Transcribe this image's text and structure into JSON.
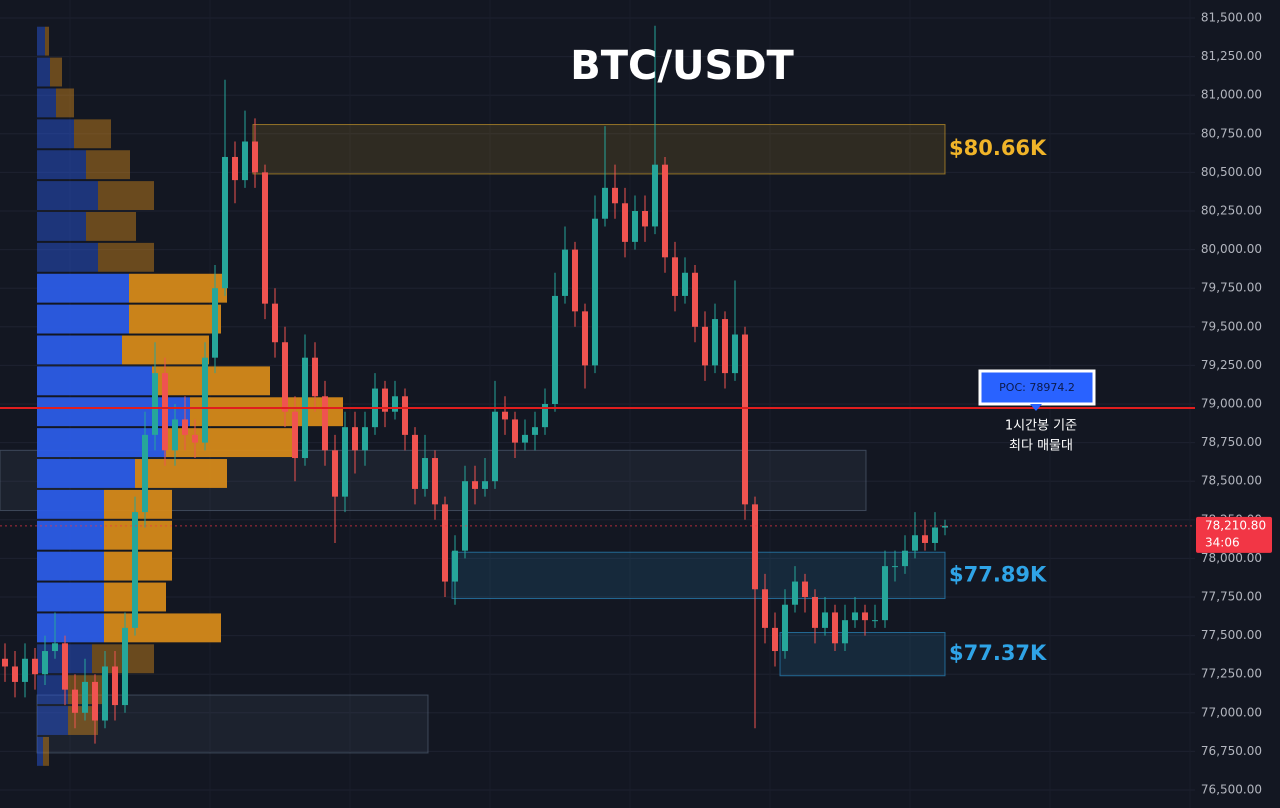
{
  "chart_data": {
    "type": "candlestick",
    "title": "BTC/USDT",
    "up_color": "#26a69a",
    "down_color": "#ef5350",
    "ylim": [
      76500,
      81500
    ],
    "yticks": [
      {
        "value": 76500,
        "label": "76,500.00"
      },
      {
        "value": 76750,
        "label": "76,750.00"
      },
      {
        "value": 77000,
        "label": "77,000.00"
      },
      {
        "value": 77250,
        "label": "77,250.00"
      },
      {
        "value": 77500,
        "label": "77,500.00"
      },
      {
        "value": 77750,
        "label": "77,750.00"
      },
      {
        "value": 78000,
        "label": "78,000.00"
      },
      {
        "value": 78250,
        "label": "78,250.00"
      },
      {
        "value": 78500,
        "label": "78,500.00"
      },
      {
        "value": 78750,
        "label": "78,750.00"
      },
      {
        "value": 79000,
        "label": "79,000.00"
      },
      {
        "value": 79250,
        "label": "79,250.00"
      },
      {
        "value": 79500,
        "label": "79,500.00"
      },
      {
        "value": 79750,
        "label": "79,750.00"
      },
      {
        "value": 80000,
        "label": "80,000.00"
      },
      {
        "value": 80250,
        "label": "80,250.00"
      },
      {
        "value": 80500,
        "label": "80,500.00"
      },
      {
        "value": 80750,
        "label": "80,750.00"
      },
      {
        "value": 81000,
        "label": "81,000.00"
      },
      {
        "value": 81250,
        "label": "81,250.00"
      },
      {
        "value": 81500,
        "label": "81,500.00"
      }
    ],
    "grid": true,
    "candles": {
      "open": [
        77350,
        77300,
        77200,
        77350,
        77250,
        77400,
        77450,
        77150,
        77000,
        77200,
        76950,
        77300,
        77050,
        77550,
        78300,
        78800,
        79200,
        78700,
        78900,
        78800,
        78750,
        79300,
        79750,
        80600,
        80450,
        80700,
        80500,
        79650,
        79400,
        78950,
        78650,
        79300,
        79050,
        78700,
        78400,
        78850,
        78700,
        78850,
        79100,
        78950,
        79050,
        78800,
        78450,
        78650,
        78350,
        77850,
        78050,
        78500,
        78450,
        78500,
        78950,
        78900,
        78750,
        78800,
        78850,
        79000,
        79700,
        80000,
        79600,
        79250,
        80200,
        80400,
        80300,
        80050,
        80250,
        80150,
        80550,
        79950,
        79700,
        79850,
        79500,
        79250,
        79550,
        79200,
        79450,
        78350,
        77800,
        77550,
        77400,
        77700,
        77850,
        77750,
        77550,
        77650,
        77450,
        77600,
        77650,
        77600,
        77600,
        77950,
        77950,
        78050,
        78150,
        78100,
        78200
      ],
      "high": [
        77450,
        77400,
        77450,
        77420,
        77500,
        77650,
        77500,
        77250,
        77350,
        77250,
        77400,
        77400,
        77650,
        78400,
        78950,
        79400,
        79300,
        79000,
        79050,
        78900,
        79400,
        79900,
        81100,
        80700,
        80900,
        80850,
        80550,
        79750,
        79500,
        79050,
        79450,
        79400,
        79150,
        78800,
        78950,
        78950,
        78950,
        79200,
        79150,
        79150,
        79100,
        78850,
        78800,
        78700,
        78400,
        78150,
        78600,
        78600,
        78650,
        79150,
        79050,
        78950,
        78900,
        78950,
        79100,
        79850,
        80150,
        80050,
        79650,
        80350,
        80800,
        80550,
        80400,
        80350,
        80350,
        81450,
        80600,
        80050,
        79950,
        79900,
        79600,
        79650,
        79600,
        79800,
        79500,
        78400,
        77900,
        77650,
        77800,
        77950,
        77900,
        77800,
        77750,
        77700,
        77700,
        77750,
        77700,
        77700,
        78050,
        78050,
        78150,
        78300,
        78250,
        78300,
        78250
      ],
      "low": [
        77200,
        77100,
        77100,
        77150,
        77180,
        77350,
        77050,
        76900,
        76950,
        76800,
        76900,
        76950,
        77000,
        77500,
        78200,
        78700,
        78600,
        78600,
        78700,
        78650,
        78700,
        79200,
        79700,
        80300,
        80400,
        80400,
        79550,
        79300,
        78850,
        78500,
        78600,
        78950,
        78600,
        78100,
        78300,
        78550,
        78600,
        78800,
        78850,
        78900,
        78700,
        78350,
        78400,
        78250,
        77750,
        77700,
        78000,
        78350,
        78400,
        78450,
        78800,
        78650,
        78700,
        78700,
        78800,
        78950,
        79650,
        79500,
        79100,
        79200,
        80150,
        80200,
        79950,
        80000,
        80050,
        80100,
        79850,
        79600,
        79650,
        79400,
        79150,
        79200,
        79100,
        79150,
        78250,
        76900,
        77450,
        77300,
        77350,
        77650,
        77650,
        77450,
        77500,
        77400,
        77400,
        77550,
        77500,
        77550,
        77550,
        77850,
        77900,
        78000,
        78050,
        78050,
        78150
      ],
      "close": [
        77300,
        77200,
        77350,
        77250,
        77400,
        77450,
        77150,
        77000,
        77200,
        76950,
        77300,
        77050,
        77550,
        78300,
        78800,
        79200,
        78700,
        78900,
        78800,
        78750,
        79300,
        79750,
        80600,
        80450,
        80700,
        80500,
        79650,
        79400,
        78950,
        78650,
        79300,
        79050,
        78700,
        78400,
        78850,
        78700,
        78850,
        79100,
        78950,
        79050,
        78800,
        78450,
        78650,
        78350,
        77850,
        78050,
        78500,
        78450,
        78500,
        78950,
        78900,
        78750,
        78800,
        78850,
        79000,
        79700,
        80000,
        79600,
        79250,
        80200,
        80400,
        80300,
        80050,
        80250,
        80150,
        80550,
        79950,
        79700,
        79850,
        79500,
        79250,
        79550,
        79200,
        79450,
        78350,
        77800,
        77550,
        77400,
        77700,
        77850,
        77750,
        77550,
        77650,
        77450,
        77600,
        77650,
        77600,
        77600,
        77950,
        77950,
        78050,
        78150,
        78100,
        78200,
        78210.8
      ]
    },
    "volume_profile": {
      "price_levels": [
        81350,
        81150,
        80950,
        80750,
        80550,
        80350,
        80150,
        79950,
        79750,
        79550,
        79350,
        79150,
        78950,
        78750,
        78550,
        78350,
        78150,
        77950,
        77750,
        77550,
        77350,
        77150,
        76950,
        76750
      ],
      "buy": [
        8,
        13,
        19,
        37,
        49,
        61,
        49,
        61,
        92,
        92,
        85,
        115,
        153,
        129,
        98,
        67,
        67,
        67,
        67,
        67,
        55,
        31,
        31,
        6
      ],
      "sell": [
        4,
        12,
        18,
        37,
        44,
        56,
        50,
        56,
        98,
        92,
        87,
        118,
        153,
        128,
        92,
        68,
        68,
        68,
        62,
        117,
        62,
        36,
        30,
        6
      ],
      "buy_color": "#2b5ce6",
      "sell_color": "#d4891a",
      "value_area": [
        77550,
        79750
      ]
    },
    "zones": [
      {
        "low": 80490,
        "high": 80810,
        "label": "$80.66K",
        "color": "#f0b429"
      },
      {
        "low": 78310,
        "high": 78700,
        "color": "#5d6b82"
      },
      {
        "low": 77740,
        "high": 78040,
        "label": "$77.89K",
        "color": "#2fa4e7"
      },
      {
        "low": 77240,
        "high": 77520,
        "label": "$77.37K",
        "color": "#2fa4e7"
      },
      {
        "low": 76740,
        "high": 77115,
        "color": "#5d6b82"
      }
    ],
    "poc": {
      "value": 78974.2,
      "label": "POC: 78974.2",
      "color": "#e01e1e"
    },
    "poc_note": [
      "1시간봉 기준",
      "최다 매물대"
    ],
    "current_price": {
      "value": 78210.8,
      "label": "78,210.80",
      "countdown": "34:06",
      "color": "#f23645"
    }
  }
}
